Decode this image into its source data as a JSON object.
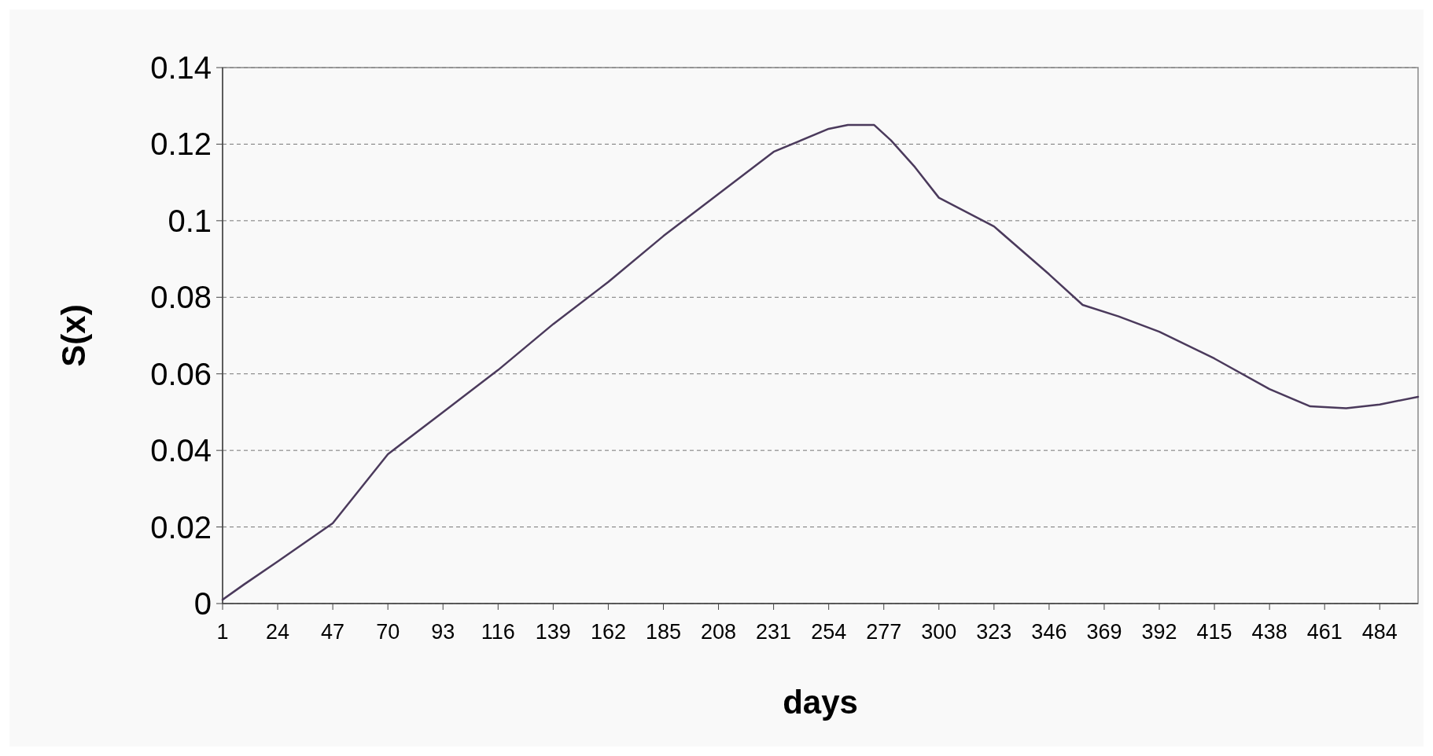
{
  "chart_data": {
    "type": "line",
    "xlabel": "days",
    "ylabel": "S(x)",
    "series": [
      {
        "color": "#4b3a5c",
        "x": [
          1,
          10,
          24,
          47,
          70,
          93,
          116,
          139,
          162,
          185,
          208,
          231,
          254,
          262,
          273,
          280,
          290,
          300,
          323,
          346,
          360,
          375,
          392,
          415,
          438,
          455,
          470,
          484,
          500
        ],
        "values": [
          0.001,
          0.005,
          0.011,
          0.021,
          0.039,
          0.05,
          0.061,
          0.073,
          0.084,
          0.096,
          0.107,
          0.118,
          0.124,
          0.125,
          0.125,
          0.121,
          0.114,
          0.106,
          0.0985,
          0.086,
          0.078,
          0.075,
          0.071,
          0.064,
          0.056,
          0.0515,
          0.051,
          0.052,
          0.054
        ]
      }
    ],
    "xlim": [
      1,
      500
    ],
    "xticks": [
      1,
      24,
      47,
      70,
      93,
      116,
      139,
      162,
      185,
      208,
      231,
      254,
      277,
      300,
      323,
      346,
      369,
      392,
      415,
      438,
      461,
      484
    ],
    "ylim": [
      0,
      0.14
    ],
    "yticks": [
      0,
      0.02,
      0.04,
      0.06,
      0.08,
      0.1,
      0.12,
      0.14
    ],
    "grid": "y"
  }
}
